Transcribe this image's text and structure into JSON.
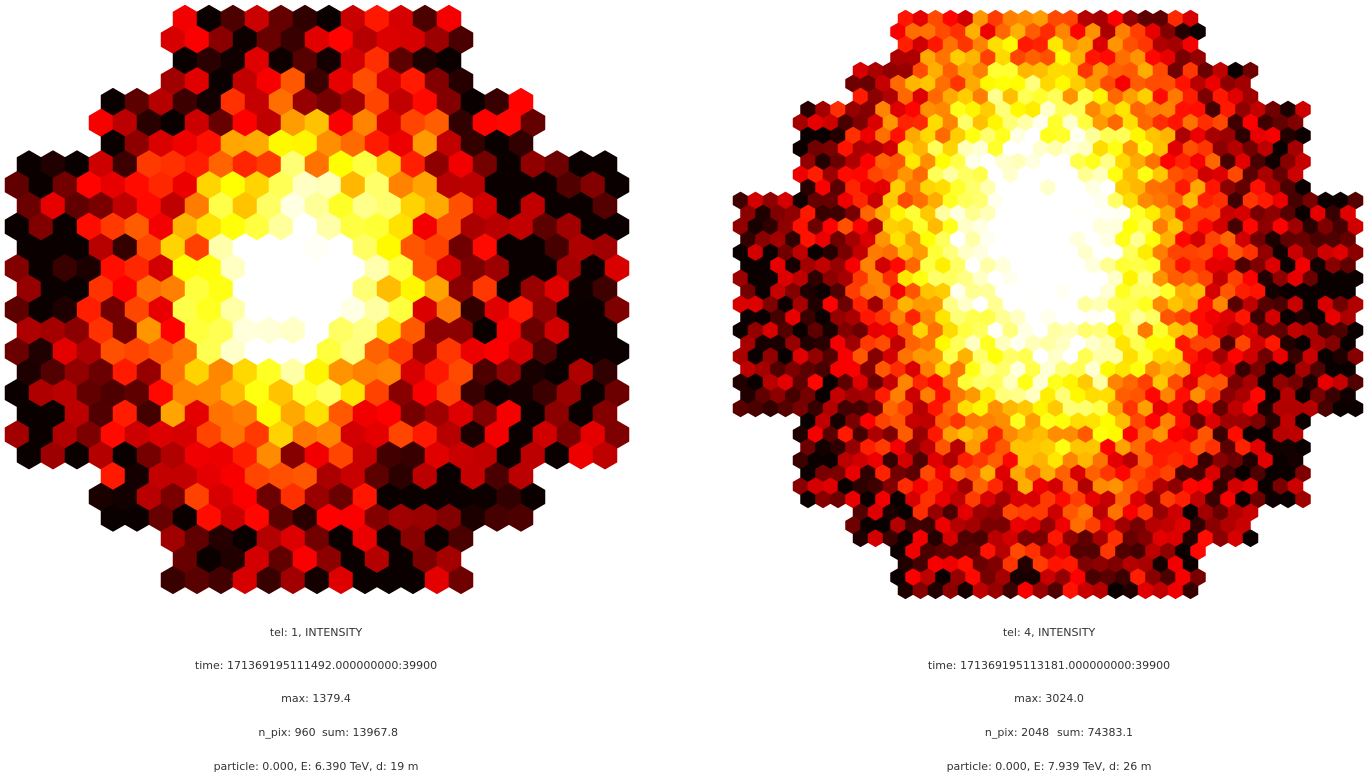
{
  "panels": [
    {
      "title": "tel: 1, INTENSITY",
      "time": "time: 171369195111492.000000000:39900",
      "max": "max: 1379.4",
      "n_pix": "n_pix: 960",
      "sum": "sum: 13967.8",
      "particle": "particle: 0.000, E: 6.390 TeV, d: 19 m"
    },
    {
      "title": "tel: 4, INTENSITY",
      "time": "time: 171369195113181.000000000:39900",
      "max": "max: 3024.0",
      "n_pix": "n_pix: 2048",
      "sum": "sum: 74383.1",
      "particle": "particle: 0.000, E: 7.939 TeV, d: 26 m"
    }
  ]
}
